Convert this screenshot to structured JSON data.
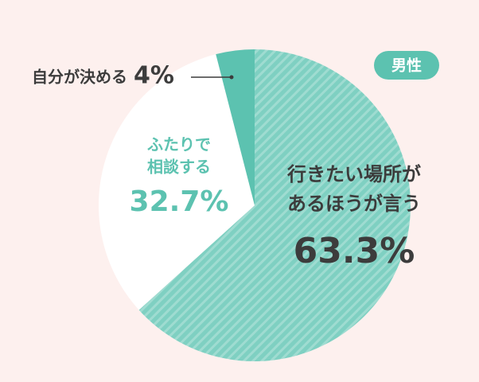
{
  "chart_data": {
    "type": "pie",
    "badge": "男性",
    "categories": [
      [
        "行きたい場所が",
        "あるほうが言う"
      ],
      [
        "ふたりで",
        "相談する"
      ],
      [
        "自分が決める"
      ]
    ],
    "values": [
      63.3,
      32.7,
      4
    ],
    "value_labels": [
      "63.3%",
      "32.7%",
      "4%"
    ],
    "colors": [
      "#7fd0c2",
      "#ffffff",
      "#5cc2b0"
    ],
    "hatch": [
      true,
      false,
      false
    ]
  }
}
